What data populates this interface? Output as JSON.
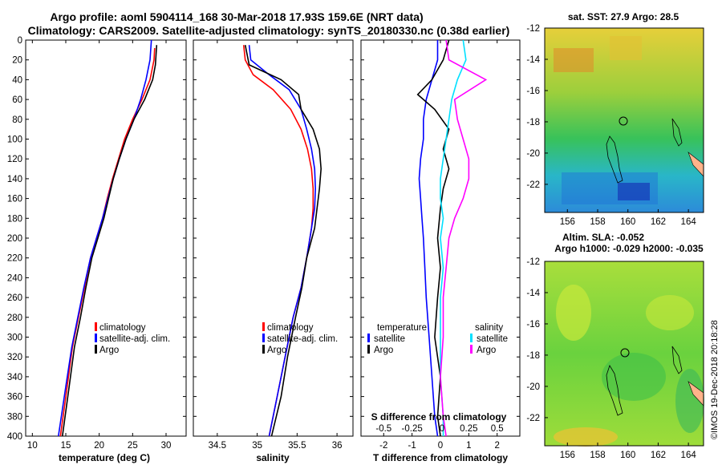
{
  "title_line1": "Argo profile: aoml 5904114_168 30-Mar-2018 17.93S 159.6E (NRT data)",
  "title_line2": "Climatology: CARS2009. Satellite-adjusted climatology: synTS_20180330.nc (0.38d earlier)",
  "credit": "©IMOS 19-Dec-2018 20:18:28",
  "colors": {
    "climatology": "#ff0000",
    "satellite": "#0000ff",
    "argo": "#000000",
    "sat_salinity": "#00e0ff",
    "argo_salinity": "#ff00ff"
  },
  "chart_data": [
    {
      "id": "temperature",
      "type": "line",
      "xlabel": "temperature (deg C)",
      "ylabel": "",
      "xlim": [
        9,
        33
      ],
      "ylim": [
        400,
        0
      ],
      "xticks": [
        10,
        15,
        20,
        25,
        30
      ],
      "xtick_labels": [
        "10",
        "15",
        "20",
        "25",
        "30"
      ],
      "yticks": [
        0,
        20,
        40,
        60,
        80,
        100,
        120,
        140,
        160,
        180,
        200,
        220,
        240,
        260,
        280,
        300,
        320,
        340,
        360,
        380,
        400
      ],
      "legend_position": "lower-right",
      "series": [
        {
          "name": "climatology",
          "color": "#ff0000",
          "x": [
            28.3,
            28.2,
            27.6,
            26.4,
            25.0,
            23.8,
            22.9,
            22.0,
            21.2,
            20.5,
            19.6,
            18.7,
            17.8,
            16.9,
            16.0,
            15.2,
            14.2
          ],
          "y": [
            8,
            20,
            40,
            60,
            80,
            100,
            120,
            140,
            160,
            180,
            200,
            220,
            250,
            280,
            310,
            350,
            400
          ]
        },
        {
          "name": "satellite-adj. clim.",
          "color": "#0000ff",
          "x": [
            27.8,
            27.6,
            27.0,
            26.2,
            25.2,
            24.0,
            23.0,
            22.1,
            21.3,
            20.5,
            19.6,
            18.7,
            17.7,
            16.8,
            15.9,
            15.0,
            13.9
          ],
          "y": [
            0,
            20,
            40,
            60,
            80,
            100,
            120,
            140,
            160,
            180,
            200,
            220,
            250,
            280,
            310,
            350,
            400
          ]
        },
        {
          "name": "Argo",
          "color": "#000000",
          "x": [
            28.6,
            28.4,
            28.0,
            26.8,
            25.2,
            24.0,
            23.0,
            22.1,
            21.4,
            20.7,
            19.8,
            18.9,
            18.0,
            17.2,
            16.3,
            15.5,
            14.5
          ],
          "y": [
            5,
            25,
            40,
            60,
            80,
            100,
            120,
            140,
            160,
            180,
            200,
            220,
            250,
            280,
            310,
            350,
            400
          ]
        }
      ],
      "legend": [
        "climatology",
        "satellite-adj. clim.",
        "Argo"
      ]
    },
    {
      "id": "salinity",
      "type": "line",
      "xlabel": "salinity",
      "ylabel": "",
      "xlim": [
        34.2,
        36.2
      ],
      "ylim": [
        400,
        0
      ],
      "xticks": [
        34.5,
        35,
        35.5,
        36
      ],
      "xtick_labels": [
        "34.5",
        "35",
        "35.5",
        "36"
      ],
      "legend_position": "lower-right",
      "series": [
        {
          "name": "climatology",
          "color": "#ff0000",
          "x": [
            34.83,
            34.85,
            34.95,
            35.2,
            35.42,
            35.55,
            35.63,
            35.68,
            35.7,
            35.7,
            35.68,
            35.62,
            35.55,
            35.45,
            35.35,
            35.25,
            35.15
          ],
          "y": [
            5,
            20,
            35,
            50,
            70,
            90,
            110,
            130,
            150,
            170,
            190,
            220,
            250,
            280,
            320,
            360,
            400
          ]
        },
        {
          "name": "satellite-adj. clim.",
          "color": "#0000ff",
          "x": [
            34.9,
            34.92,
            35.15,
            35.4,
            35.55,
            35.62,
            35.68,
            35.72,
            35.73,
            35.72,
            35.68,
            35.62,
            35.55,
            35.45,
            35.35,
            35.25,
            35.15
          ],
          "y": [
            5,
            20,
            35,
            50,
            70,
            90,
            110,
            130,
            150,
            170,
            190,
            220,
            250,
            280,
            320,
            360,
            400
          ]
        },
        {
          "name": "Argo",
          "color": "#000000",
          "x": [
            34.85,
            34.9,
            35.3,
            35.52,
            35.55,
            35.7,
            35.78,
            35.8,
            35.78,
            35.75,
            35.72,
            35.62,
            35.56,
            35.48,
            35.38,
            35.3,
            35.18
          ],
          "y": [
            5,
            25,
            40,
            55,
            70,
            90,
            110,
            130,
            150,
            170,
            190,
            220,
            250,
            280,
            320,
            360,
            400
          ]
        }
      ],
      "legend": [
        "climatology",
        "satellite-adj. clim.",
        "Argo"
      ]
    },
    {
      "id": "differences",
      "type": "line",
      "xlabel": "T difference from climatology",
      "xlabel_top": "S difference from climatology",
      "xlim": [
        -2.8,
        2.8
      ],
      "ylim": [
        400,
        0
      ],
      "xticks": [
        -2,
        -1,
        0,
        1,
        2
      ],
      "xtick_labels": [
        "-2",
        "-1",
        "0",
        "1",
        "2"
      ],
      "top_ticks": [
        -2,
        -1,
        0,
        1,
        2
      ],
      "top_tick_labels": [
        "-0.5",
        "-0.25",
        "0",
        "0.25",
        "0.5"
      ],
      "legend_position": "lower",
      "series": [
        {
          "name": "temperature satellite",
          "color": "#0000ff",
          "x": [
            -0.1,
            -0.1,
            -0.3,
            -0.5,
            -0.6,
            -0.6,
            -0.7,
            -0.75,
            -0.7,
            -0.65,
            -0.6,
            -0.55,
            -0.5,
            -0.4,
            -0.3,
            -0.2,
            -0.1
          ],
          "y": [
            0,
            20,
            40,
            60,
            80,
            100,
            120,
            140,
            160,
            180,
            200,
            230,
            260,
            300,
            340,
            380,
            400
          ]
        },
        {
          "name": "temperature Argo",
          "color": "#000000",
          "x": [
            0.3,
            0.1,
            -0.3,
            -0.8,
            -0.2,
            0.3,
            0.1,
            0.3,
            0.1,
            0.0,
            -0.1,
            0.0,
            -0.1,
            -0.2,
            0.0,
            -0.1,
            0.0
          ],
          "y": [
            0,
            20,
            40,
            55,
            70,
            90,
            110,
            130,
            150,
            170,
            200,
            230,
            260,
            300,
            340,
            380,
            400
          ]
        },
        {
          "name": "salinity satellite",
          "color": "#00e0ff",
          "x": [
            0.8,
            0.9,
            0.6,
            0.4,
            0.3,
            0.2,
            0.1,
            0.0,
            0.0,
            0.1,
            0.0,
            0.1,
            0.0,
            0.0,
            0.0,
            0.1,
            0.1
          ],
          "y": [
            0,
            20,
            40,
            60,
            80,
            100,
            120,
            140,
            160,
            180,
            200,
            230,
            260,
            300,
            340,
            380,
            400
          ]
        },
        {
          "name": "salinity Argo",
          "color": "#ff00ff",
          "x": [
            0.2,
            0.3,
            1.6,
            0.5,
            0.6,
            0.8,
            1.0,
            1.0,
            0.8,
            0.5,
            0.3,
            0.2,
            0.1,
            0.1,
            0.0,
            0.1,
            0.2
          ],
          "y": [
            0,
            20,
            40,
            60,
            80,
            100,
            120,
            140,
            160,
            180,
            200,
            230,
            260,
            300,
            340,
            380,
            400
          ]
        }
      ],
      "legend_left_title": "temperature",
      "legend_right_title": "salinity",
      "legend_left": [
        "satellite",
        "Argo"
      ],
      "legend_right": [
        "satellite",
        "Argo"
      ]
    }
  ],
  "maps": [
    {
      "id": "sst-map",
      "title": "sat. SST: 27.9 Argo: 28.5",
      "lon_ticks": [
        "156",
        "158",
        "160",
        "162",
        "164"
      ],
      "lat_ticks": [
        "-12",
        "-14",
        "-16",
        "-18",
        "-20",
        "-22"
      ]
    },
    {
      "id": "sla-map",
      "title_line1": "Altim. SLA: -0.052",
      "title_line2": "Argo h1000: -0.029 h2000: -0.035",
      "lon_ticks": [
        "156",
        "158",
        "160",
        "162",
        "164"
      ],
      "lat_ticks": [
        "-12",
        "-14",
        "-16",
        "-18",
        "-20",
        "-22"
      ]
    }
  ]
}
